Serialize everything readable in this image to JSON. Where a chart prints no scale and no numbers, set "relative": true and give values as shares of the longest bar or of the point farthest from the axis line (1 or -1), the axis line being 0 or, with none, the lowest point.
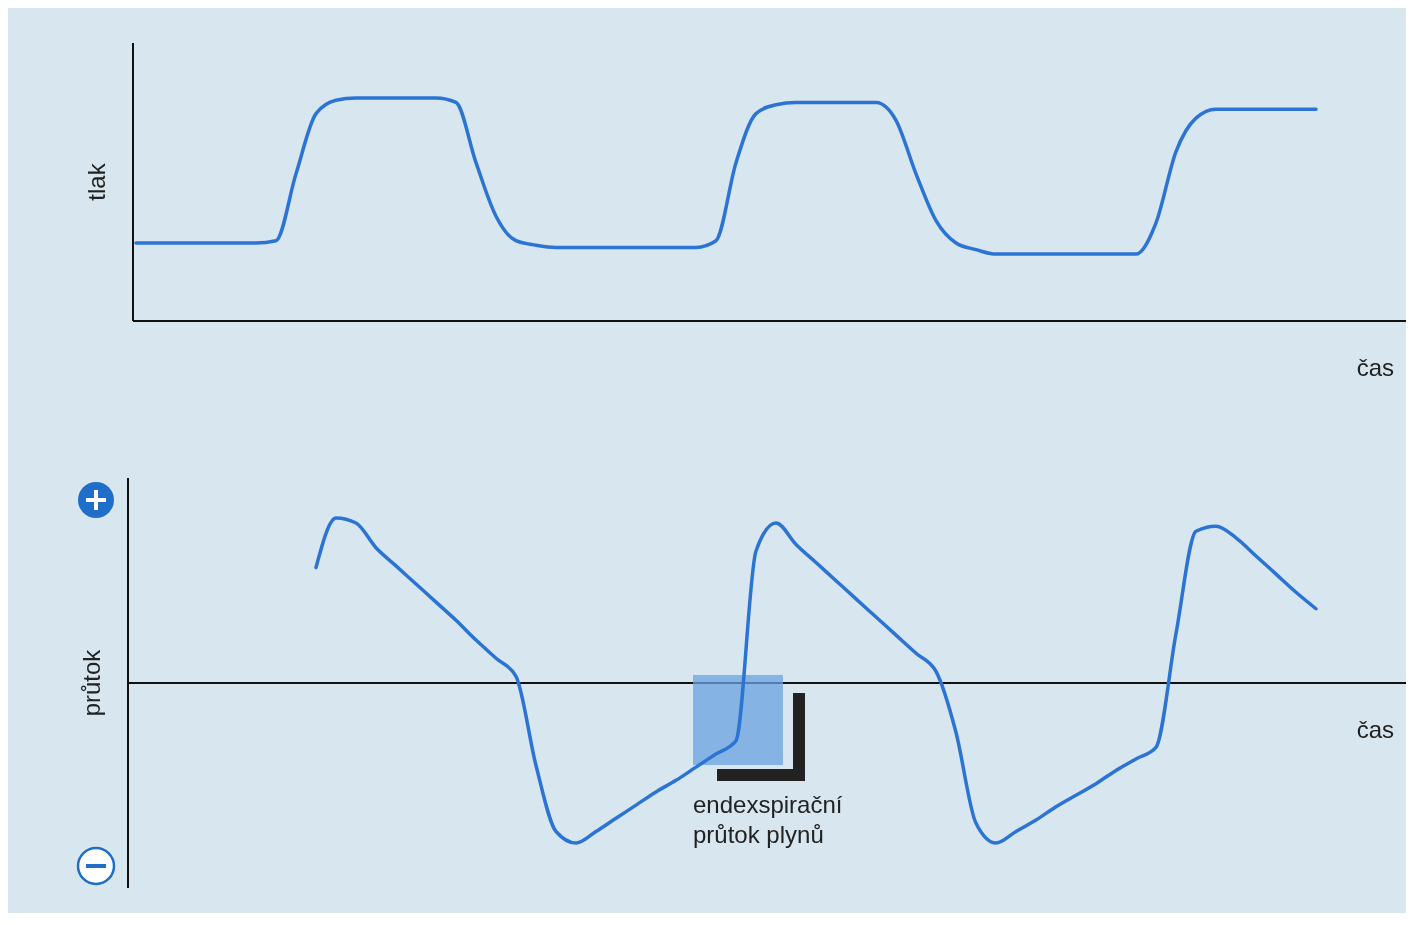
{
  "chart_data": [
    {
      "type": "line",
      "ylabel": "tlak",
      "xlabel": "čas",
      "relative": true,
      "line_style": "solid",
      "categories": [
        null,
        null,
        null,
        null,
        null,
        null,
        null,
        null,
        null,
        null,
        null,
        null,
        null,
        null,
        null,
        null,
        null,
        null,
        null,
        null,
        null,
        null,
        null,
        null,
        null,
        null,
        null,
        null,
        null,
        null,
        null,
        null,
        null,
        null,
        null,
        null,
        null,
        null,
        null,
        null,
        null,
        null,
        null,
        null,
        null,
        null,
        null,
        null,
        null,
        null,
        null,
        null,
        null,
        null,
        null,
        null,
        null,
        null,
        null,
        null
      ],
      "series": [
        {
          "color": "#2b74d3",
          "values": [
            0.35,
            0.35,
            0.35,
            0.35,
            0.35,
            0.35,
            0.35,
            0.36,
            0.66,
            0.93,
            0.99,
            1.0,
            1.0,
            1.0,
            1.0,
            1.0,
            0.98,
            0.71,
            0.47,
            0.36,
            0.34,
            0.33,
            0.33,
            0.33,
            0.33,
            0.33,
            0.33,
            0.33,
            0.33,
            0.36,
            0.71,
            0.93,
            0.97,
            0.98,
            0.98,
            0.98,
            0.98,
            0.98,
            0.9,
            0.66,
            0.45,
            0.35,
            0.32,
            0.3,
            0.3,
            0.3,
            0.3,
            0.3,
            0.3,
            0.3,
            0.3,
            0.44,
            0.76,
            0.91,
            0.95,
            0.95,
            0.95,
            0.95,
            0.95,
            0.95
          ]
        }
      ]
    },
    {
      "type": "line",
      "ylabel": "průtok",
      "xlabel": "čas",
      "relative": true,
      "line_style": "solid",
      "annotations": [
        "endexspirační průtok plynů"
      ],
      "categories": [
        null,
        null,
        null,
        null,
        null,
        null,
        null,
        null,
        null,
        null,
        null,
        null,
        null,
        null,
        null,
        null,
        null,
        null,
        null,
        null,
        null,
        null,
        null,
        null,
        null,
        null,
        null,
        null,
        null,
        null,
        null,
        null,
        null,
        null,
        null,
        null,
        null,
        null,
        null,
        null,
        null,
        null,
        null,
        null,
        null,
        null,
        null,
        null,
        null,
        null,
        null,
        null,
        null,
        null,
        null,
        null,
        null,
        null,
        null,
        null
      ],
      "series": [
        {
          "color": "#2b74d3",
          "values": [
            null,
            null,
            null,
            null,
            null,
            null,
            null,
            null,
            null,
            0.7,
            1.0,
            0.97,
            0.82,
            0.71,
            0.6,
            0.49,
            0.38,
            0.26,
            0.15,
            0.04,
            -0.5,
            -0.9,
            -0.97,
            -0.9,
            -0.82,
            -0.74,
            -0.66,
            -0.59,
            -0.51,
            -0.43,
            -0.35,
            0.8,
            0.97,
            0.84,
            0.73,
            0.62,
            0.51,
            0.4,
            0.29,
            0.18,
            0.07,
            -0.3,
            -0.85,
            -0.97,
            -0.9,
            -0.83,
            -0.75,
            -0.68,
            -0.61,
            -0.53,
            -0.46,
            -0.39,
            0.3,
            0.92,
            0.95,
            0.88,
            0.77,
            0.66,
            0.55,
            0.45
          ]
        }
      ]
    }
  ]
}
